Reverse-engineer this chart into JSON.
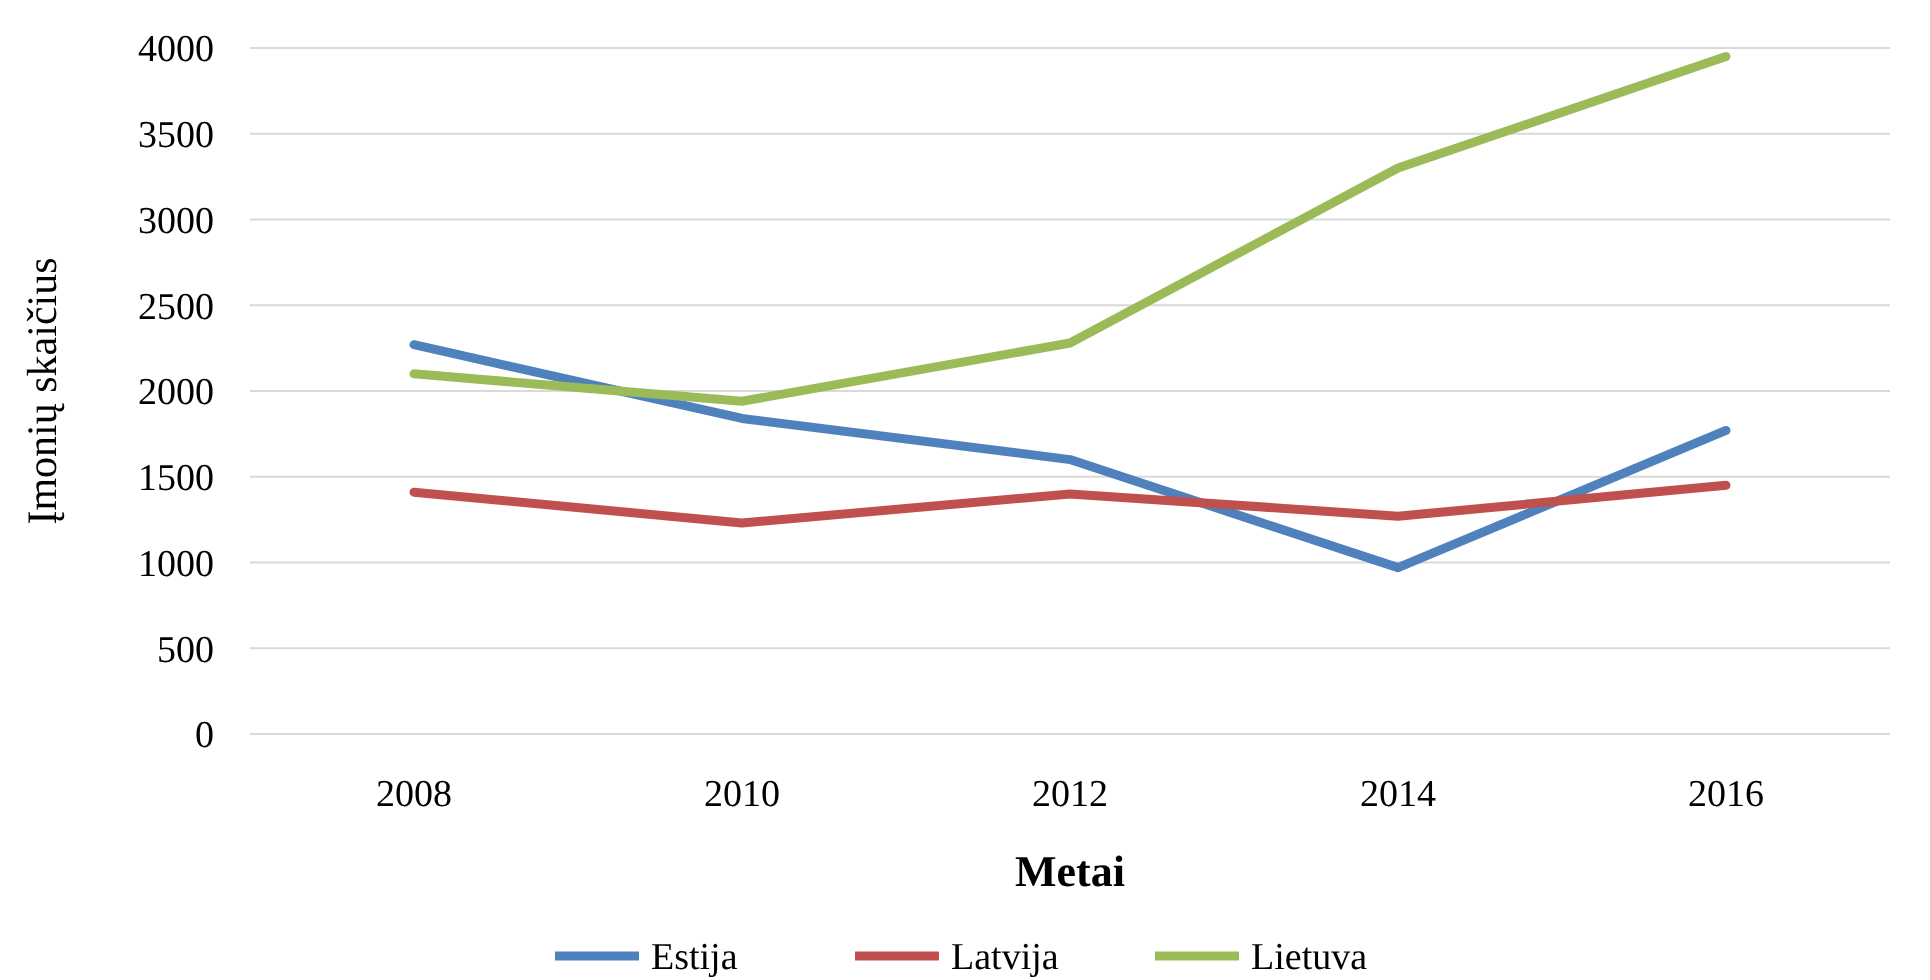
{
  "chart_data": {
    "type": "line",
    "xlabel": "Metai",
    "ylabel": "Įmonių skaičius",
    "categories": [
      "2008",
      "2010",
      "2012",
      "2014",
      "2016"
    ],
    "series": [
      {
        "name": "Estija",
        "color": "#4f81bd",
        "values": [
          2270,
          1840,
          1600,
          970,
          1770
        ]
      },
      {
        "name": "Latvija",
        "color": "#c0504d",
        "values": [
          1410,
          1230,
          1400,
          1270,
          1450
        ]
      },
      {
        "name": "Lietuva",
        "color": "#9bbb59",
        "values": [
          2100,
          1940,
          2280,
          3300,
          3950
        ]
      }
    ],
    "ylim": [
      0,
      4000
    ],
    "yticks": [
      0,
      500,
      1000,
      1500,
      2000,
      2500,
      3000,
      3500,
      4000
    ],
    "grid": "y",
    "legend": "bottom",
    "marker": "none",
    "line_style": "solid"
  }
}
